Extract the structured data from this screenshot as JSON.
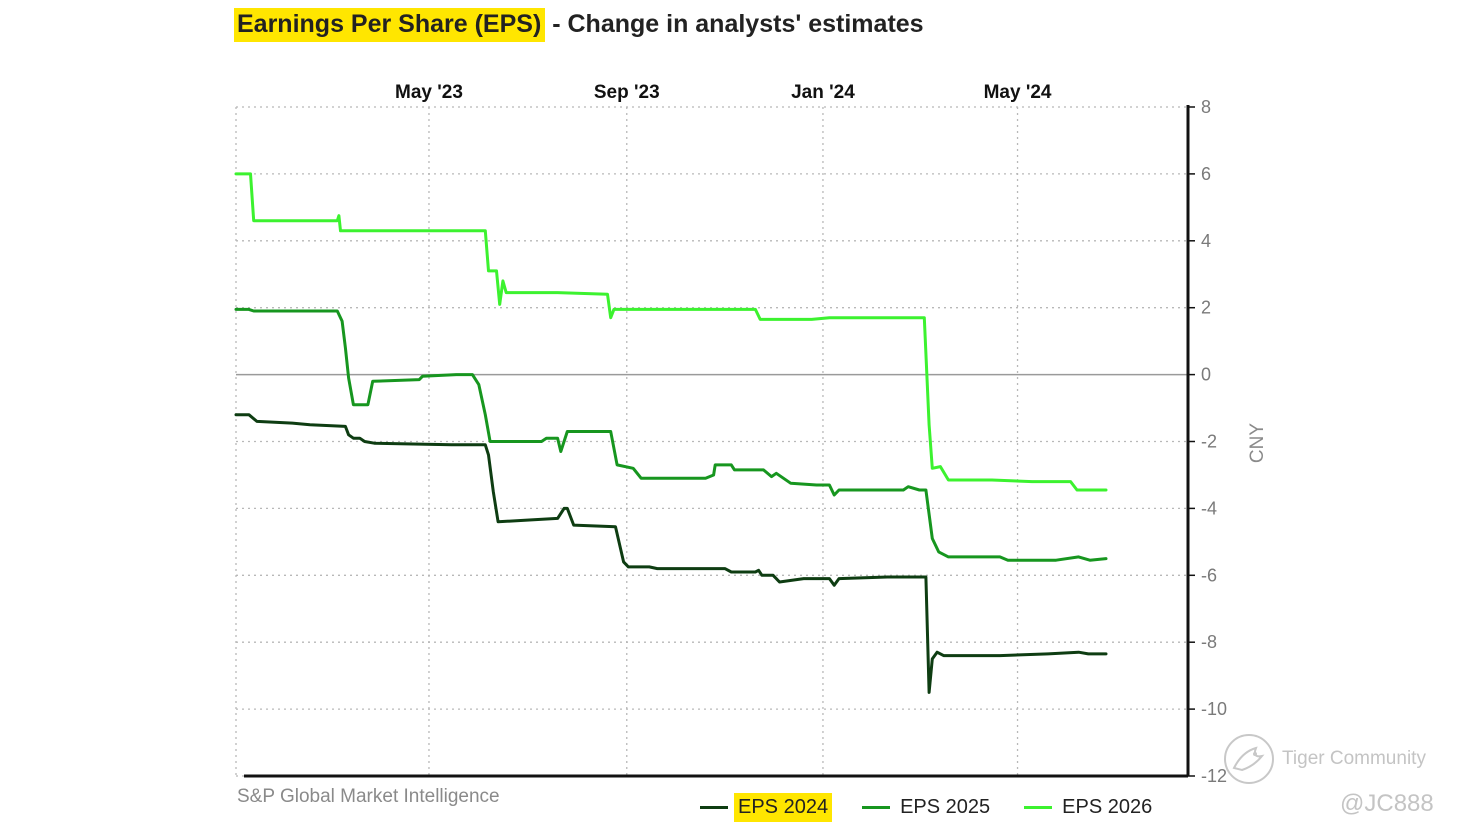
{
  "chart_title": {
    "highlight": "Earnings Per Share (EPS)",
    "rest": " - Change in analysts' estimates"
  },
  "source_label": "S&P Global Market Intelligence",
  "watermark": {
    "text": "Tiger Community",
    "handle": "@JC888"
  },
  "chart_data": {
    "type": "line",
    "title": "Earnings Per Share (EPS) - Change in analysts' estimates",
    "ylabel": "CNY",
    "ylim": [
      -12,
      8
    ],
    "yticks": [
      8,
      6,
      4,
      2,
      0,
      -2,
      -4,
      -6,
      -8,
      -10,
      -12
    ],
    "x_start": "2023-01-01",
    "x_end": "2024-08-15",
    "x_tick_labels": [
      {
        "label": "May '23",
        "date": "2023-05-01"
      },
      {
        "label": "Sep '23",
        "date": "2023-09-01"
      },
      {
        "label": "Jan '24",
        "date": "2024-01-01"
      },
      {
        "label": "May '24",
        "date": "2024-05-01"
      }
    ],
    "grid": true,
    "legend_position": "bottom",
    "colors": {
      "EPS 2024": "#0e3d12",
      "EPS 2025": "#17961f",
      "EPS 2026": "#3cf22f"
    },
    "series": [
      {
        "name": "EPS 2024",
        "highlight": true,
        "points": [
          [
            "2022-12-05",
            -1.2
          ],
          [
            "2023-01-09",
            -1.2
          ],
          [
            "2023-01-14",
            -1.4
          ],
          [
            "2023-02-05",
            -1.45
          ],
          [
            "2023-02-16",
            -1.5
          ],
          [
            "2023-03-10",
            -1.55
          ],
          [
            "2023-03-12",
            -1.8
          ],
          [
            "2023-03-15",
            -1.9
          ],
          [
            "2023-03-19",
            -1.9
          ],
          [
            "2023-03-22",
            -2.0
          ],
          [
            "2023-03-28",
            -2.05
          ],
          [
            "2023-05-15",
            -2.1
          ],
          [
            "2023-06-05",
            -2.1
          ],
          [
            "2023-06-07",
            -2.4
          ],
          [
            "2023-06-10",
            -3.5
          ],
          [
            "2023-06-13",
            -4.4
          ],
          [
            "2023-07-01",
            -4.35
          ],
          [
            "2023-07-20",
            -4.3
          ],
          [
            "2023-07-24",
            -4.0
          ],
          [
            "2023-07-26",
            -4.0
          ],
          [
            "2023-07-30",
            -4.5
          ],
          [
            "2023-08-25",
            -4.55
          ],
          [
            "2023-08-30",
            -5.6
          ],
          [
            "2023-09-02",
            -5.75
          ],
          [
            "2023-09-15",
            -5.75
          ],
          [
            "2023-09-20",
            -5.8
          ],
          [
            "2023-11-01",
            -5.8
          ],
          [
            "2023-11-05",
            -5.9
          ],
          [
            "2023-11-20",
            -5.9
          ],
          [
            "2023-11-22",
            -5.85
          ],
          [
            "2023-11-24",
            -6.0
          ],
          [
            "2023-12-01",
            -6.0
          ],
          [
            "2023-12-05",
            -6.2
          ],
          [
            "2023-12-20",
            -6.1
          ],
          [
            "2024-01-05",
            -6.1
          ],
          [
            "2024-01-08",
            -6.3
          ],
          [
            "2024-01-11",
            -6.1
          ],
          [
            "2024-02-10",
            -6.05
          ],
          [
            "2024-03-05",
            -6.05
          ],
          [
            "2024-03-07",
            -9.5
          ],
          [
            "2024-03-09",
            -8.5
          ],
          [
            "2024-03-12",
            -8.3
          ],
          [
            "2024-03-16",
            -8.4
          ],
          [
            "2024-04-20",
            -8.4
          ],
          [
            "2024-05-20",
            -8.35
          ],
          [
            "2024-06-08",
            -8.3
          ],
          [
            "2024-06-14",
            -8.35
          ],
          [
            "2024-06-25",
            -8.35
          ]
        ]
      },
      {
        "name": "EPS 2025",
        "highlight": false,
        "points": [
          [
            "2022-12-05",
            1.95
          ],
          [
            "2023-01-09",
            1.95
          ],
          [
            "2023-01-12",
            1.9
          ],
          [
            "2023-03-05",
            1.9
          ],
          [
            "2023-03-08",
            1.6
          ],
          [
            "2023-03-10",
            0.8
          ],
          [
            "2023-03-12",
            -0.1
          ],
          [
            "2023-03-15",
            -0.9
          ],
          [
            "2023-03-24",
            -0.9
          ],
          [
            "2023-03-27",
            -0.2
          ],
          [
            "2023-04-25",
            -0.15
          ],
          [
            "2023-04-27",
            -0.05
          ],
          [
            "2023-05-18",
            0.0
          ],
          [
            "2023-05-28",
            0.0
          ],
          [
            "2023-06-01",
            -0.3
          ],
          [
            "2023-06-05",
            -1.2
          ],
          [
            "2023-06-08",
            -2.0
          ],
          [
            "2023-07-10",
            -2.0
          ],
          [
            "2023-07-13",
            -1.9
          ],
          [
            "2023-07-20",
            -1.9
          ],
          [
            "2023-07-22",
            -2.3
          ],
          [
            "2023-07-26",
            -1.7
          ],
          [
            "2023-08-22",
            -1.7
          ],
          [
            "2023-08-26",
            -2.7
          ],
          [
            "2023-09-05",
            -2.8
          ],
          [
            "2023-09-10",
            -3.1
          ],
          [
            "2023-10-20",
            -3.1
          ],
          [
            "2023-10-25",
            -3.0
          ],
          [
            "2023-10-26",
            -2.7
          ],
          [
            "2023-11-05",
            -2.7
          ],
          [
            "2023-11-07",
            -2.85
          ],
          [
            "2023-11-25",
            -2.85
          ],
          [
            "2023-11-30",
            -3.05
          ],
          [
            "2023-12-03",
            -2.95
          ],
          [
            "2023-12-12",
            -3.25
          ],
          [
            "2023-12-28",
            -3.3
          ],
          [
            "2024-01-05",
            -3.3
          ],
          [
            "2024-01-08",
            -3.6
          ],
          [
            "2024-01-11",
            -3.45
          ],
          [
            "2024-02-20",
            -3.45
          ],
          [
            "2024-02-23",
            -3.35
          ],
          [
            "2024-03-01",
            -3.45
          ],
          [
            "2024-03-05",
            -3.45
          ],
          [
            "2024-03-09",
            -4.9
          ],
          [
            "2024-03-13",
            -5.3
          ],
          [
            "2024-03-19",
            -5.45
          ],
          [
            "2024-04-20",
            -5.45
          ],
          [
            "2024-04-25",
            -5.55
          ],
          [
            "2024-05-25",
            -5.55
          ],
          [
            "2024-06-08",
            -5.45
          ],
          [
            "2024-06-15",
            -5.55
          ],
          [
            "2024-06-25",
            -5.5
          ]
        ]
      },
      {
        "name": "EPS 2026",
        "highlight": false,
        "points": [
          [
            "2022-12-05",
            6.0
          ],
          [
            "2023-01-10",
            6.0
          ],
          [
            "2023-01-12",
            4.6
          ],
          [
            "2023-03-05",
            4.6
          ],
          [
            "2023-03-06",
            4.75
          ],
          [
            "2023-03-07",
            4.3
          ],
          [
            "2023-05-20",
            4.3
          ],
          [
            "2023-06-05",
            4.3
          ],
          [
            "2023-06-07",
            3.1
          ],
          [
            "2023-06-12",
            3.1
          ],
          [
            "2023-06-14",
            2.1
          ],
          [
            "2023-06-16",
            2.8
          ],
          [
            "2023-06-18",
            2.45
          ],
          [
            "2023-07-20",
            2.45
          ],
          [
            "2023-08-20",
            2.4
          ],
          [
            "2023-08-22",
            1.7
          ],
          [
            "2023-08-24",
            1.95
          ],
          [
            "2023-11-10",
            1.95
          ],
          [
            "2023-11-20",
            1.95
          ],
          [
            "2023-11-23",
            1.65
          ],
          [
            "2023-12-25",
            1.65
          ],
          [
            "2024-01-05",
            1.7
          ],
          [
            "2024-02-15",
            1.7
          ],
          [
            "2024-03-04",
            1.7
          ],
          [
            "2024-03-07",
            -1.5
          ],
          [
            "2024-03-09",
            -2.8
          ],
          [
            "2024-03-14",
            -2.75
          ],
          [
            "2024-03-19",
            -3.15
          ],
          [
            "2024-04-15",
            -3.15
          ],
          [
            "2024-05-10",
            -3.2
          ],
          [
            "2024-06-03",
            -3.2
          ],
          [
            "2024-06-07",
            -3.45
          ],
          [
            "2024-06-25",
            -3.45
          ]
        ]
      }
    ]
  }
}
